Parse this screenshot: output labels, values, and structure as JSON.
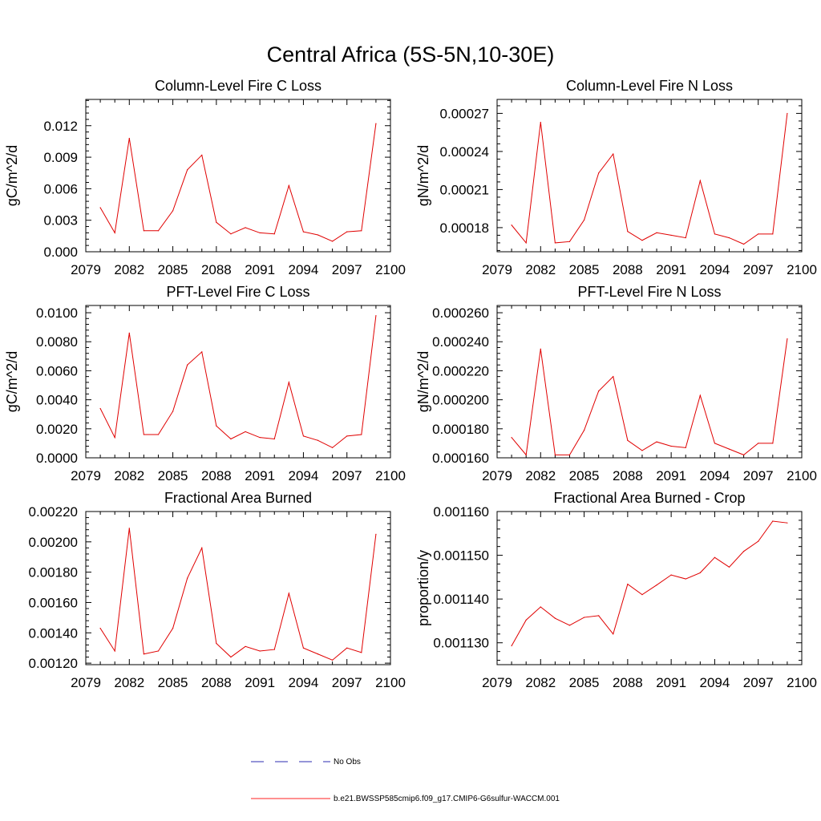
{
  "figure": {
    "title": "Central Africa (5S-5N,10-30E)",
    "legend": [
      {
        "label": "No Obs",
        "color": "#2b2bb0",
        "dash": true
      },
      {
        "label": "b.e21.BWSSP585cmip6.f09_g17.CMIP6-G6sulfur-WACCM.001",
        "color": "#ff2020",
        "dash": false
      }
    ],
    "line_color": "#e00000"
  },
  "chart_data": [
    {
      "type": "line",
      "title": "Column-Level Fire C Loss",
      "ylabel": "gC/m^2/d",
      "xlim": [
        2079,
        2100
      ],
      "xticks": [
        2079,
        2082,
        2085,
        2088,
        2091,
        2094,
        2097,
        2100
      ],
      "ylim": [
        0,
        0.0145
      ],
      "yticks": [
        0,
        0.003,
        0.006,
        0.009,
        0.012
      ],
      "ytick_labels": [
        "0.000",
        "0.003",
        "0.006",
        "0.009",
        "0.012"
      ],
      "ymajor": 0.003,
      "x": [
        2080,
        2081,
        2082,
        2083,
        2084,
        2085,
        2086,
        2087,
        2088,
        2089,
        2090,
        2091,
        2092,
        2093,
        2094,
        2095,
        2096,
        2097,
        2098,
        2099
      ],
      "values": [
        0.0042,
        0.0018,
        0.0108,
        0.002,
        0.002,
        0.0039,
        0.0078,
        0.0092,
        0.0028,
        0.0017,
        0.0023,
        0.0018,
        0.0017,
        0.0063,
        0.0019,
        0.0016,
        0.001,
        0.0019,
        0.002,
        0.0122
      ]
    },
    {
      "type": "line",
      "title": "Column-Level Fire N Loss",
      "ylabel": "gN/m^2/d",
      "xlim": [
        2079,
        2100
      ],
      "xticks": [
        2079,
        2082,
        2085,
        2088,
        2091,
        2094,
        2097,
        2100
      ],
      "ylim": [
        0.000161,
        0.000281
      ],
      "yticks": [
        0.00018,
        0.00021,
        0.00024,
        0.00027
      ],
      "ytick_labels": [
        "0.00018",
        "0.00021",
        "0.00024",
        "0.00027"
      ],
      "ymajor": 3e-05,
      "x": [
        2080,
        2081,
        2082,
        2083,
        2084,
        2085,
        2086,
        2087,
        2088,
        2089,
        2090,
        2091,
        2092,
        2093,
        2094,
        2095,
        2096,
        2097,
        2098,
        2099
      ],
      "values": [
        0.000182,
        0.000168,
        0.000263,
        0.000168,
        0.000169,
        0.000186,
        0.000223,
        0.000238,
        0.000177,
        0.00017,
        0.000176,
        0.000174,
        0.000172,
        0.000217,
        0.000175,
        0.000172,
        0.000167,
        0.000175,
        0.000175,
        0.00027
      ]
    },
    {
      "type": "line",
      "title": "PFT-Level Fire C Loss",
      "ylabel": "gC/m^2/d",
      "xlim": [
        2079,
        2100
      ],
      "xticks": [
        2079,
        2082,
        2085,
        2088,
        2091,
        2094,
        2097,
        2100
      ],
      "ylim": [
        0,
        0.0105
      ],
      "yticks": [
        0,
        0.002,
        0.004,
        0.006,
        0.008,
        0.01
      ],
      "ytick_labels": [
        "0.0000",
        "0.0020",
        "0.0040",
        "0.0060",
        "0.0080",
        "0.0100"
      ],
      "ymajor": 0.002,
      "x": [
        2080,
        2081,
        2082,
        2083,
        2084,
        2085,
        2086,
        2087,
        2088,
        2089,
        2090,
        2091,
        2092,
        2093,
        2094,
        2095,
        2096,
        2097,
        2098,
        2099
      ],
      "values": [
        0.0034,
        0.0014,
        0.0086,
        0.0016,
        0.0016,
        0.0032,
        0.0064,
        0.0073,
        0.0022,
        0.0013,
        0.0018,
        0.0014,
        0.0013,
        0.0052,
        0.0015,
        0.0012,
        0.0007,
        0.0015,
        0.0016,
        0.0098
      ]
    },
    {
      "type": "line",
      "title": "PFT-Level Fire N Loss",
      "ylabel": "gN/m^2/d",
      "xlim": [
        2079,
        2100
      ],
      "xticks": [
        2079,
        2082,
        2085,
        2088,
        2091,
        2094,
        2097,
        2100
      ],
      "ylim": [
        0.00016,
        0.000265
      ],
      "yticks": [
        0.00016,
        0.00018,
        0.0002,
        0.00022,
        0.00024,
        0.00026
      ],
      "ytick_labels": [
        "0.000160",
        "0.000180",
        "0.000200",
        "0.000220",
        "0.000240",
        "0.000260"
      ],
      "ymajor": 2e-05,
      "x": [
        2080,
        2081,
        2082,
        2083,
        2084,
        2085,
        2086,
        2087,
        2088,
        2089,
        2090,
        2091,
        2092,
        2093,
        2094,
        2095,
        2096,
        2097,
        2098,
        2099
      ],
      "values": [
        0.000174,
        0.000162,
        0.000235,
        0.000162,
        0.000162,
        0.000179,
        0.000206,
        0.000216,
        0.000172,
        0.000165,
        0.000171,
        0.000168,
        0.000167,
        0.000203,
        0.00017,
        0.000166,
        0.000162,
        0.00017,
        0.00017,
        0.000242
      ]
    },
    {
      "type": "line",
      "title": "Fractional Area Burned",
      "ylabel": "",
      "xlim": [
        2079,
        2100
      ],
      "xticks": [
        2079,
        2082,
        2085,
        2088,
        2091,
        2094,
        2097,
        2100
      ],
      "ylim": [
        0.00119,
        0.0022
      ],
      "yticks": [
        0.0012,
        0.0014,
        0.0016,
        0.0018,
        0.002,
        0.0022
      ],
      "ytick_labels": [
        "0.00120",
        "0.00140",
        "0.00160",
        "0.00180",
        "0.00200",
        "0.00220"
      ],
      "ymajor": 0.0002,
      "x": [
        2080,
        2081,
        2082,
        2083,
        2084,
        2085,
        2086,
        2087,
        2088,
        2089,
        2090,
        2091,
        2092,
        2093,
        2094,
        2095,
        2096,
        2097,
        2098,
        2099
      ],
      "values": [
        0.00143,
        0.00128,
        0.00209,
        0.00126,
        0.00128,
        0.00143,
        0.00176,
        0.00196,
        0.00133,
        0.00124,
        0.00131,
        0.00128,
        0.00129,
        0.00166,
        0.0013,
        0.00126,
        0.00122,
        0.0013,
        0.00127,
        0.00205
      ]
    },
    {
      "type": "line",
      "title": "Fractional Area Burned - Crop",
      "ylabel": "proportion/y",
      "xlim": [
        2079,
        2100
      ],
      "xticks": [
        2079,
        2082,
        2085,
        2088,
        2091,
        2094,
        2097,
        2100
      ],
      "ylim": [
        0.001125,
        0.00116
      ],
      "yticks": [
        0.00113,
        0.00114,
        0.00115,
        0.00116
      ],
      "ytick_labels": [
        "0.001130",
        "0.001140",
        "0.001150",
        "0.001160"
      ],
      "ymajor": 1e-05,
      "x": [
        2080,
        2081,
        2082,
        2083,
        2084,
        2085,
        2086,
        2087,
        2088,
        2089,
        2090,
        2091,
        2092,
        2093,
        2094,
        2095,
        2096,
        2097,
        2098,
        2099
      ],
      "values": [
        0.0011293,
        0.0011352,
        0.0011382,
        0.0011356,
        0.001134,
        0.0011358,
        0.0011362,
        0.001132,
        0.0011434,
        0.001141,
        0.0011432,
        0.0011455,
        0.0011446,
        0.001146,
        0.0011495,
        0.0011473,
        0.0011509,
        0.0011532,
        0.0011578,
        0.0011574
      ]
    }
  ]
}
